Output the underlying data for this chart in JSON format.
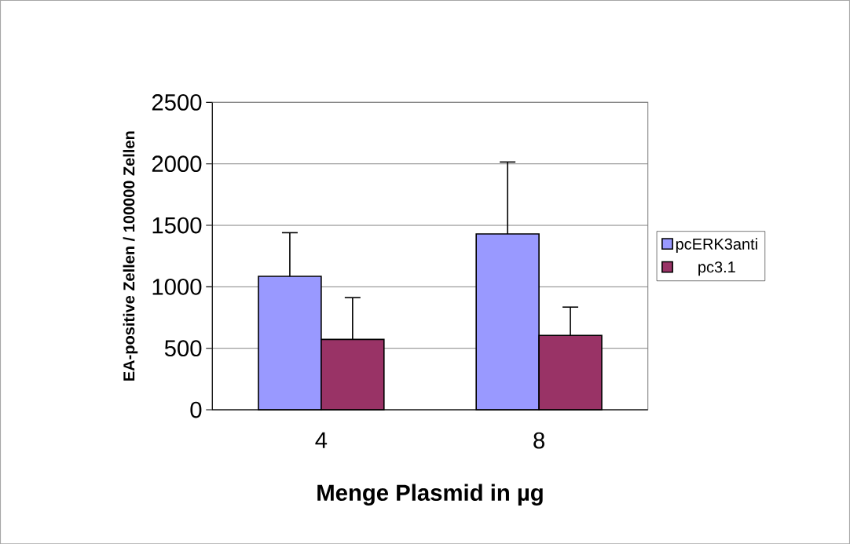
{
  "chart_data": {
    "type": "bar",
    "xlabel": "Menge Plasmid in µg",
    "ylabel": "EA-positive Zellen / 100000 Zellen",
    "categories": [
      "4",
      "8"
    ],
    "series": [
      {
        "name": "pcERK3anti",
        "color": "#9999ff",
        "values": [
          1085,
          1430
        ],
        "errors": [
          [
            1085,
            1440
          ],
          [
            1430,
            2015
          ]
        ]
      },
      {
        "name": "pc3.1",
        "color": "#993366",
        "values": [
          572,
          605
        ],
        "errors": [
          [
            572,
            912
          ],
          [
            605,
            835
          ]
        ]
      }
    ],
    "ylim": [
      0,
      2500
    ],
    "yticks": [
      0,
      500,
      1000,
      1500,
      2000,
      2500
    ],
    "grid": "y",
    "legend": "right"
  }
}
